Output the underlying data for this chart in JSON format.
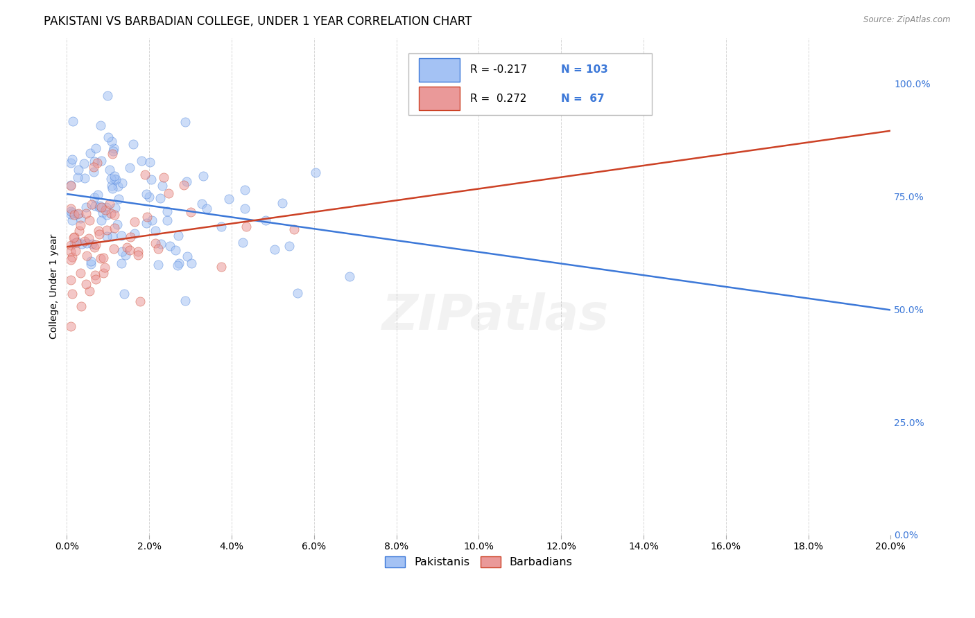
{
  "title": "PAKISTANI VS BARBADIAN COLLEGE, UNDER 1 YEAR CORRELATION CHART",
  "source": "Source: ZipAtlas.com",
  "ylabel": "College, Under 1 year",
  "xmin": 0.0,
  "xmax": 0.2,
  "ymin": 0.0,
  "ymax": 1.1,
  "blue_R": -0.217,
  "blue_N": 103,
  "pink_R": 0.272,
  "pink_N": 67,
  "blue_color": "#a4c2f4",
  "pink_color": "#ea9999",
  "blue_line_color": "#3c78d8",
  "pink_line_color": "#cc4125",
  "watermark": "ZIPatlas",
  "legend_label_blue": "Pakistanis",
  "legend_label_pink": "Barbadians",
  "blue_line_x0": 0.0,
  "blue_line_y0": 0.755,
  "blue_line_x1": 0.2,
  "blue_line_y1": 0.498,
  "pink_line_x0": 0.0,
  "pink_line_y0": 0.638,
  "pink_line_x1": 0.2,
  "pink_line_y1": 0.895,
  "title_fontsize": 12,
  "axis_label_fontsize": 10,
  "tick_fontsize": 10,
  "right_tick_color": "#3c78d8",
  "watermark_fontsize": 52,
  "watermark_alpha": 0.1,
  "scatter_size": 90,
  "scatter_alpha": 0.55,
  "line_width": 1.8
}
